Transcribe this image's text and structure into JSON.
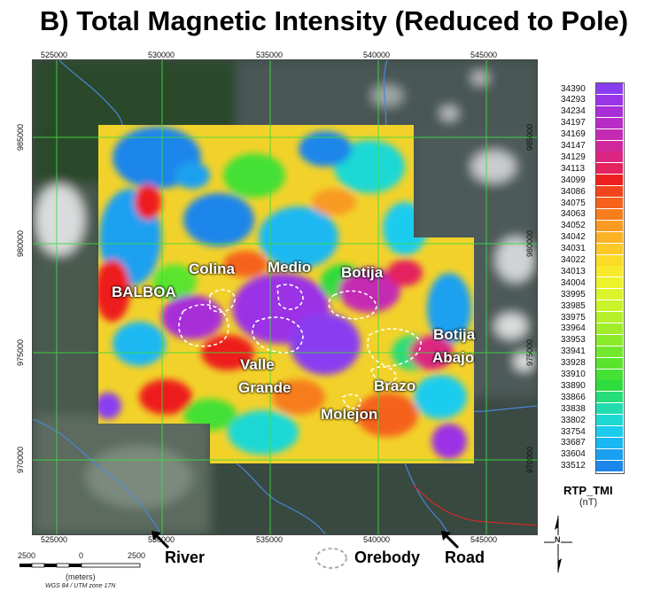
{
  "title": "B) Total Magnetic Intensity (Reduced to Pole)",
  "map": {
    "x_ticks_top": [
      "525000",
      "530000",
      "535000",
      "540000",
      "545000"
    ],
    "x_ticks_bottom": [
      "525000",
      "530000",
      "535000",
      "540000",
      "545000"
    ],
    "y_ticks_left": [
      "985000",
      "980000",
      "975000",
      "970000"
    ],
    "y_ticks_right": [
      "985000",
      "980000",
      "975000",
      "970000"
    ],
    "gridline_color": "#3ddc3d",
    "deposit_labels": [
      {
        "id": "colina",
        "text": "Colina"
      },
      {
        "id": "medio",
        "text": "Medio"
      },
      {
        "id": "botija",
        "text": "Botija"
      },
      {
        "id": "balboa",
        "text": "BALBOA"
      },
      {
        "id": "botija-abajo-1",
        "text": "Botija"
      },
      {
        "id": "botija-abajo-2",
        "text": "Abajo"
      },
      {
        "id": "valle-1",
        "text": "Valle"
      },
      {
        "id": "valle-2",
        "text": "Grande"
      },
      {
        "id": "brazo",
        "text": "Brazo"
      },
      {
        "id": "molejon",
        "text": "Molejon"
      }
    ]
  },
  "legend": {
    "title": "RTP_TMI",
    "unit": "(nT)",
    "entries": [
      {
        "value": "34390",
        "color": "#8a3cf0"
      },
      {
        "value": "34293",
        "color": "#9b33e6"
      },
      {
        "value": "34234",
        "color": "#a82ed8"
      },
      {
        "value": "34197",
        "color": "#b72cc6"
      },
      {
        "value": "34169",
        "color": "#c52ab3"
      },
      {
        "value": "34147",
        "color": "#d0289c"
      },
      {
        "value": "34129",
        "color": "#db2582"
      },
      {
        "value": "34113",
        "color": "#e4235e"
      },
      {
        "value": "34099",
        "color": "#ee1f1f"
      },
      {
        "value": "34086",
        "color": "#f2441c"
      },
      {
        "value": "34075",
        "color": "#f5621b"
      },
      {
        "value": "34063",
        "color": "#f77d1d"
      },
      {
        "value": "34052",
        "color": "#f99a22"
      },
      {
        "value": "34042",
        "color": "#fbb224"
      },
      {
        "value": "34031",
        "color": "#fcc826"
      },
      {
        "value": "34022",
        "color": "#fcdb28"
      },
      {
        "value": "34013",
        "color": "#f8ea2a"
      },
      {
        "value": "34004",
        "color": "#eef22a"
      },
      {
        "value": "33995",
        "color": "#dcf52a"
      },
      {
        "value": "33985",
        "color": "#c9f42a"
      },
      {
        "value": "33975",
        "color": "#b5f12a"
      },
      {
        "value": "33964",
        "color": "#a0ee2a"
      },
      {
        "value": "33953",
        "color": "#8aeb2a"
      },
      {
        "value": "33941",
        "color": "#72e82c"
      },
      {
        "value": "33928",
        "color": "#5ae42e"
      },
      {
        "value": "33910",
        "color": "#44e034"
      },
      {
        "value": "33890",
        "color": "#2edc3e"
      },
      {
        "value": "33866",
        "color": "#27dc7a"
      },
      {
        "value": "33838",
        "color": "#22dcae"
      },
      {
        "value": "33802",
        "color": "#1ed8d4"
      },
      {
        "value": "33754",
        "color": "#1bccee"
      },
      {
        "value": "33687",
        "color": "#1ab8f2"
      },
      {
        "value": "33604",
        "color": "#1aa0f0"
      },
      {
        "value": "33512",
        "color": "#1c86ea"
      }
    ]
  },
  "scale_bar": {
    "labels": [
      "2500",
      "0",
      "2500"
    ],
    "unit": "(meters)",
    "projection": "WGS 84 / UTM zone 17N"
  },
  "annotations": {
    "river": "River",
    "orebody": "Orebody",
    "road": "Road"
  },
  "north_arrow": "N"
}
